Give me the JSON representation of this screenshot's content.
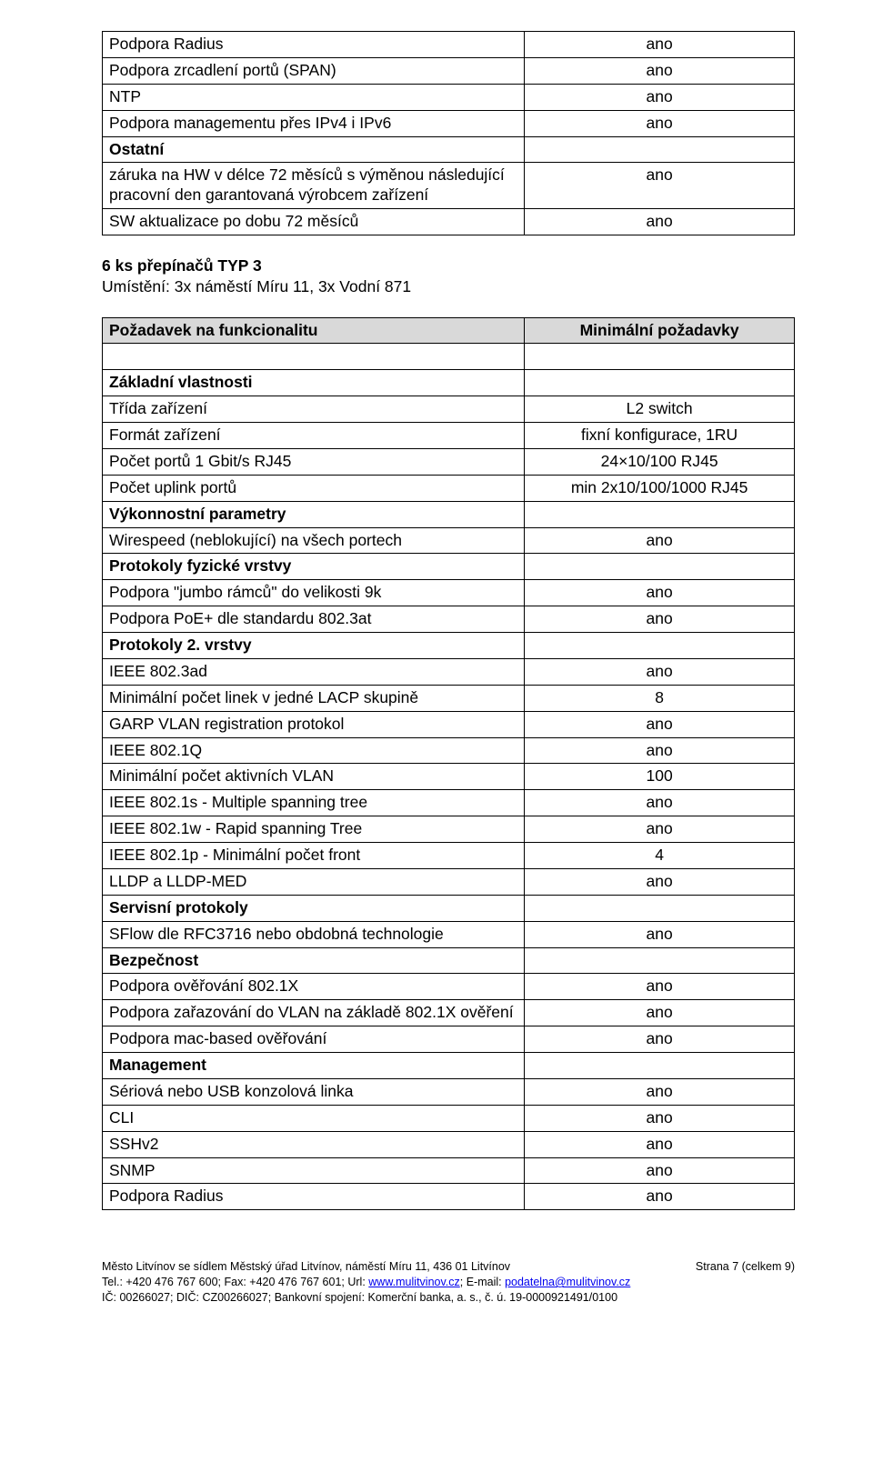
{
  "colors": {
    "page_bg": "#ffffff",
    "text": "#000000",
    "border": "#000000",
    "header_bg": "#d9d9d9",
    "link": "#0000ee"
  },
  "typography": {
    "body_font": "Arial",
    "body_size_pt": 13,
    "footer_size_pt": 9
  },
  "table1": {
    "col_widths_pct": [
      61,
      39
    ],
    "rows": [
      {
        "label": "Podpora Radius",
        "value": "ano"
      },
      {
        "label": "Podpora zrcadlení portů (SPAN)",
        "value": "ano"
      },
      {
        "label": "NTP",
        "value": "ano"
      },
      {
        "label": "Podpora managementu přes IPv4 i IPv6",
        "value": "ano"
      },
      {
        "label": "Ostatní",
        "value": "",
        "section": true
      },
      {
        "label": "záruka na HW v délce 72 měsíců s výměnou následující pracovní den garantovaná výrobcem zařízení",
        "value": "ano"
      },
      {
        "label": "SW aktualizace po dobu 72 měsíců",
        "value": "ano"
      }
    ]
  },
  "between": {
    "title": "6 ks přepínačů TYP 3",
    "subtitle": "Umístění: 3x náměstí Míru 11, 3x Vodní 871"
  },
  "table2": {
    "col_widths_pct": [
      61,
      39
    ],
    "header": {
      "label": "Požadavek na funkcionalitu",
      "value": "Minimální požadavky"
    },
    "rows": [
      {
        "label": "",
        "value": "",
        "blank": true
      },
      {
        "label": "Základní vlastnosti",
        "value": "",
        "section": true
      },
      {
        "label": "Třída zařízení",
        "value": "L2 switch"
      },
      {
        "label": "Formát zařízení",
        "value": "fixní konfigurace, 1RU"
      },
      {
        "label": "Počet portů 1 Gbit/s RJ45",
        "value": "24×10/100 RJ45"
      },
      {
        "label": "Počet uplink portů",
        "value": "min 2x10/100/1000 RJ45"
      },
      {
        "label": "Výkonnostní parametry",
        "value": "",
        "section": true
      },
      {
        "label": "Wirespeed (neblokující) na všech portech",
        "value": "ano"
      },
      {
        "label": "Protokoly fyzické vrstvy",
        "value": "",
        "section": true
      },
      {
        "label": "Podpora \"jumbo rámců\" do velikosti 9k",
        "value": "ano"
      },
      {
        "label": "Podpora PoE+ dle standardu 802.3at",
        "value": "ano"
      },
      {
        "label": "Protokoly 2. vrstvy",
        "value": "",
        "section": true
      },
      {
        "label": "IEEE 802.3ad",
        "value": "ano"
      },
      {
        "label": "Minimální počet linek v jedné LACP skupině",
        "value": "8"
      },
      {
        "label": "GARP VLAN registration protokol",
        "value": "ano"
      },
      {
        "label": "IEEE 802.1Q",
        "value": "ano"
      },
      {
        "label": "Minimální počet aktivních VLAN",
        "value": "100"
      },
      {
        "label": "IEEE 802.1s - Multiple spanning tree",
        "value": "ano"
      },
      {
        "label": "IEEE 802.1w - Rapid spanning Tree",
        "value": "ano"
      },
      {
        "label": "IEEE 802.1p - Minimální počet front",
        "value": "4"
      },
      {
        "label": "LLDP a LLDP-MED",
        "value": "ano"
      },
      {
        "label": "Servisní protokoly",
        "value": "",
        "section": true
      },
      {
        "label": "SFlow dle RFC3716 nebo obdobná technologie",
        "value": "ano"
      },
      {
        "label": "Bezpečnost",
        "value": "",
        "section": true
      },
      {
        "label": "Podpora ověřování 802.1X",
        "value": "ano"
      },
      {
        "label": "Podpora zařazování do VLAN na základě 802.1X ověření",
        "value": "ano"
      },
      {
        "label": "Podpora mac-based ověřování",
        "value": "ano"
      },
      {
        "label": "Management",
        "value": "",
        "section": true
      },
      {
        "label": "Sériová nebo USB konzolová linka",
        "value": "ano"
      },
      {
        "label": "CLI",
        "value": "ano"
      },
      {
        "label": "SSHv2",
        "value": "ano"
      },
      {
        "label": "SNMP",
        "value": "ano"
      },
      {
        "label": "Podpora Radius",
        "value": "ano"
      }
    ]
  },
  "footer": {
    "line1": "Město Litvínov se sídlem Městský úřad Litvínov, náměstí Míru 11, 436 01 Litvínov",
    "line2_pre": "Tel.: +420 476 767 600; Fax: +420 476 767 601; Url: ",
    "url": "www.mulitvinov.cz",
    "line2_mid": "; E-mail: ",
    "email": "podatelna@mulitvinov.cz",
    "line3": "IČ: 00266027; DIČ: CZ00266027; Bankovní spojení: Komerční banka, a. s., č. ú. 19-0000921491/0100",
    "page_label": "Strana 7 (celkem 9)"
  }
}
